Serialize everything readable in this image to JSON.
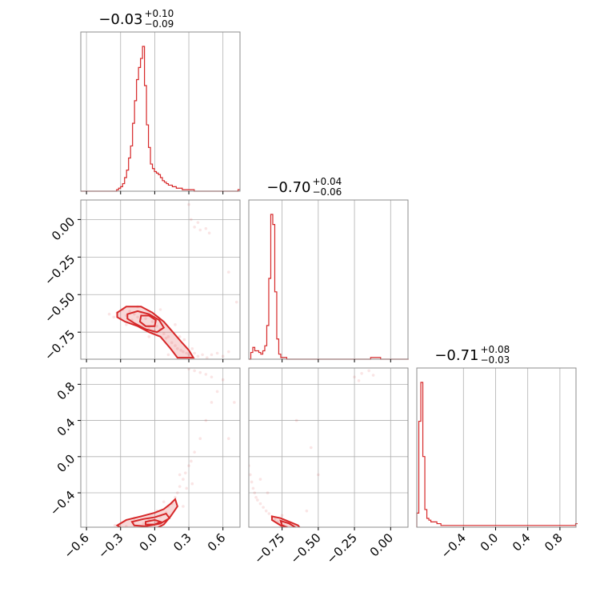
{
  "chart_data": {
    "type": "corner",
    "color": "#d62728",
    "parameters": [
      {
        "title_value": "−0.03",
        "title_plus": "+0.10",
        "title_minus": "−0.09",
        "range": [
          -0.65,
          0.75
        ],
        "ticks": [
          -0.6,
          -0.3,
          0.0,
          0.3,
          0.6
        ],
        "tick_labels": [
          "−0.6",
          "−0.3",
          "0.0",
          "0.3",
          "0.6"
        ],
        "hist": {
          "edges_start": -0.65,
          "bin_width": 0.0175,
          "counts": [
            0,
            0,
            0,
            0,
            0,
            0,
            0,
            0,
            0,
            0,
            0,
            0,
            0,
            0,
            0,
            0,
            0,
            0,
            1,
            2,
            3,
            5,
            9,
            14,
            22,
            30,
            45,
            60,
            74,
            82,
            88,
            96,
            70,
            44,
            29,
            18,
            15,
            13,
            12,
            11,
            9,
            7,
            6,
            5,
            4,
            4,
            3,
            3,
            2,
            2,
            2,
            1,
            1,
            1,
            1,
            1,
            1,
            0,
            0,
            0,
            0,
            0,
            0,
            0,
            0,
            0,
            0,
            0,
            0,
            0,
            0,
            0,
            0,
            0,
            0,
            0,
            0,
            0,
            0,
            1
          ]
        }
      },
      {
        "title_value": "−0.70",
        "title_plus": "+0.04",
        "title_minus": "−0.06",
        "range": [
          -0.98,
          0.12
        ],
        "ticks": [
          -0.75,
          -0.5,
          -0.25,
          0.0
        ],
        "tick_labels": [
          "−0.75",
          "−0.50",
          "−0.25",
          "0.00"
        ],
        "yticks": [
          0.0,
          -0.25,
          -0.5,
          -0.75
        ],
        "ytick_labels": [
          "0.00",
          "−0.25",
          "−0.50",
          "−0.75"
        ],
        "hist": {
          "edges_start": -0.98,
          "bin_width": 0.0138,
          "counts": [
            0,
            4,
            7,
            5,
            5,
            4,
            3,
            5,
            8,
            20,
            48,
            86,
            80,
            40,
            12,
            3,
            1,
            1,
            1,
            0,
            0,
            0,
            0,
            0,
            0,
            0,
            0,
            0,
            0,
            0,
            0,
            0,
            0,
            0,
            0,
            0,
            0,
            0,
            0,
            0,
            0,
            0,
            0,
            0,
            0,
            0,
            0,
            0,
            0,
            0,
            0,
            0,
            0,
            0,
            0,
            0,
            0,
            0,
            0,
            0,
            0,
            1,
            1,
            1,
            1,
            1,
            0,
            0,
            0,
            0,
            0,
            0,
            0,
            0,
            0,
            0,
            0,
            0,
            0,
            0
          ]
        }
      },
      {
        "title_value": "−0.71",
        "title_plus": "+0.08",
        "title_minus": "−0.03",
        "range": [
          -0.98,
          1.0
        ],
        "ticks": [
          -0.4,
          0.0,
          0.4,
          0.8
        ],
        "tick_labels": [
          "−0.4",
          "0.0",
          "0.4",
          "0.8"
        ],
        "yticks": [
          0.8,
          0.4,
          0.0,
          -0.4
        ],
        "ytick_labels": [
          "0.8",
          "0.4",
          "0.0",
          "−0.4"
        ],
        "hist": {
          "edges_start": -0.98,
          "bin_width": 0.025,
          "counts": [
            8,
            60,
            82,
            40,
            10,
            5,
            4,
            3,
            3,
            3,
            2,
            2,
            1,
            1,
            1,
            1,
            1,
            1,
            1,
            1,
            1,
            1,
            1,
            1,
            1,
            1,
            1,
            1,
            1,
            1,
            1,
            1,
            1,
            1,
            1,
            1,
            1,
            1,
            1,
            1,
            1,
            1,
            1,
            1,
            1,
            1,
            1,
            1,
            1,
            1,
            1,
            1,
            1,
            1,
            1,
            1,
            1,
            1,
            1,
            1,
            1,
            1,
            1,
            1,
            1,
            1,
            1,
            1,
            1,
            1,
            1,
            1,
            1,
            1,
            1,
            1,
            1,
            1,
            1,
            2
          ]
        }
      }
    ],
    "pairs": [
      {
        "name": "param2-vs-param1",
        "row": 1,
        "col": 0,
        "scatter": [
          [
            -0.4,
            -0.63
          ],
          [
            -0.36,
            -0.65
          ],
          [
            -0.33,
            -0.62
          ],
          [
            -0.3,
            -0.66
          ],
          [
            -0.28,
            -0.6
          ],
          [
            -0.25,
            -0.64
          ],
          [
            -0.22,
            -0.61
          ],
          [
            -0.2,
            -0.67
          ],
          [
            -0.18,
            -0.63
          ],
          [
            -0.15,
            -0.65
          ],
          [
            -0.12,
            -0.62
          ],
          [
            -0.1,
            -0.7
          ],
          [
            -0.08,
            -0.66
          ],
          [
            -0.05,
            -0.72
          ],
          [
            -0.02,
            -0.68
          ],
          [
            0.0,
            -0.74
          ],
          [
            0.02,
            -0.71
          ],
          [
            0.05,
            -0.73
          ],
          [
            0.08,
            -0.76
          ],
          [
            0.1,
            -0.79
          ],
          [
            0.12,
            -0.78
          ],
          [
            0.15,
            -0.82
          ],
          [
            0.18,
            -0.84
          ],
          [
            0.2,
            -0.86
          ],
          [
            0.23,
            -0.87
          ],
          [
            0.25,
            -0.88
          ],
          [
            0.28,
            -0.89
          ],
          [
            0.3,
            -0.9
          ],
          [
            0.33,
            -0.86
          ],
          [
            0.35,
            -0.89
          ],
          [
            0.38,
            -0.91
          ],
          [
            0.42,
            -0.9
          ],
          [
            0.46,
            -0.92
          ],
          [
            0.5,
            -0.9
          ],
          [
            0.55,
            -0.89
          ],
          [
            0.6,
            -0.91
          ],
          [
            0.65,
            -0.88
          ],
          [
            0.32,
            0.0
          ],
          [
            0.35,
            -0.05
          ],
          [
            0.38,
            -0.02
          ],
          [
            0.4,
            -0.07
          ],
          [
            0.45,
            -0.06
          ],
          [
            0.48,
            -0.09
          ],
          [
            0.3,
            0.1
          ],
          [
            0.65,
            -0.35
          ],
          [
            0.72,
            -0.55
          ],
          [
            -0.15,
            -0.58
          ],
          [
            -0.25,
            -0.7
          ],
          [
            0.05,
            -0.6
          ],
          [
            0.18,
            -0.7
          ],
          [
            0.22,
            -0.78
          ],
          [
            -0.05,
            -0.78
          ],
          [
            0.26,
            -0.8
          ],
          [
            0.12,
            -0.9
          ]
        ],
        "contours": [
          [
            [
              -0.33,
              -0.62
            ],
            [
              -0.25,
              -0.58
            ],
            [
              -0.12,
              -0.58
            ],
            [
              -0.02,
              -0.62
            ],
            [
              0.08,
              -0.68
            ],
            [
              0.16,
              -0.75
            ],
            [
              0.24,
              -0.82
            ],
            [
              0.3,
              -0.87
            ],
            [
              0.34,
              -0.92
            ],
            [
              0.2,
              -0.92
            ],
            [
              0.14,
              -0.86
            ],
            [
              0.05,
              -0.78
            ],
            [
              -0.05,
              -0.75
            ],
            [
              -0.15,
              -0.71
            ],
            [
              -0.26,
              -0.68
            ],
            [
              -0.33,
              -0.65
            ]
          ],
          [
            [
              -0.24,
              -0.63
            ],
            [
              -0.15,
              -0.61
            ],
            [
              -0.05,
              -0.63
            ],
            [
              0.04,
              -0.67
            ],
            [
              0.08,
              -0.72
            ],
            [
              0.02,
              -0.75
            ],
            [
              -0.08,
              -0.73
            ],
            [
              -0.18,
              -0.69
            ],
            [
              -0.24,
              -0.66
            ]
          ],
          [
            [
              -0.12,
              -0.64
            ],
            [
              -0.05,
              -0.64
            ],
            [
              0.01,
              -0.67
            ],
            [
              0.0,
              -0.71
            ],
            [
              -0.08,
              -0.71
            ],
            [
              -0.13,
              -0.68
            ]
          ]
        ],
        "ylim": [
          -0.93,
          0.13
        ]
      },
      {
        "name": "param3-vs-param1",
        "row": 2,
        "col": 0,
        "scatter": [
          [
            -0.35,
            -0.76
          ],
          [
            -0.3,
            -0.79
          ],
          [
            -0.25,
            -0.77
          ],
          [
            -0.2,
            -0.81
          ],
          [
            -0.15,
            -0.79
          ],
          [
            -0.1,
            -0.74
          ],
          [
            -0.05,
            -0.7
          ],
          [
            0.0,
            -0.72
          ],
          [
            0.05,
            -0.66
          ],
          [
            0.1,
            -0.62
          ],
          [
            0.12,
            -0.55
          ],
          [
            0.15,
            -0.52
          ],
          [
            0.18,
            -0.45
          ],
          [
            0.2,
            -0.4
          ],
          [
            0.22,
            -0.33
          ],
          [
            0.25,
            -0.25
          ],
          [
            0.27,
            -0.18
          ],
          [
            0.3,
            -0.1
          ],
          [
            0.32,
            -0.05
          ],
          [
            0.35,
            0.05
          ],
          [
            0.28,
            -0.35
          ],
          [
            0.22,
            -0.2
          ],
          [
            0.33,
            -0.3
          ],
          [
            0.4,
            0.2
          ],
          [
            0.45,
            0.4
          ],
          [
            0.5,
            0.6
          ],
          [
            0.55,
            0.72
          ],
          [
            0.6,
            0.85
          ],
          [
            0.35,
            0.95
          ],
          [
            0.4,
            0.93
          ],
          [
            0.45,
            0.91
          ],
          [
            0.5,
            0.88
          ],
          [
            0.3,
            0.97
          ],
          [
            0.7,
            0.6
          ],
          [
            0.65,
            0.2
          ],
          [
            0.08,
            -0.5
          ],
          [
            0.14,
            -0.65
          ],
          [
            -0.18,
            -0.68
          ],
          [
            0.02,
            -0.6
          ],
          [
            0.25,
            -0.55
          ]
        ],
        "contours": [
          [
            [
              -0.33,
              -0.76
            ],
            [
              -0.25,
              -0.7
            ],
            [
              -0.12,
              -0.66
            ],
            [
              0.0,
              -0.62
            ],
            [
              0.08,
              -0.58
            ],
            [
              0.14,
              -0.52
            ],
            [
              0.18,
              -0.47
            ],
            [
              0.2,
              -0.55
            ],
            [
              0.14,
              -0.66
            ],
            [
              0.08,
              -0.75
            ],
            [
              0.0,
              -0.8
            ],
            [
              -0.15,
              -0.81
            ],
            [
              -0.28,
              -0.8
            ]
          ],
          [
            [
              -0.2,
              -0.72
            ],
            [
              -0.1,
              -0.69
            ],
            [
              0.0,
              -0.67
            ],
            [
              0.1,
              -0.63
            ],
            [
              0.13,
              -0.68
            ],
            [
              0.05,
              -0.74
            ],
            [
              -0.08,
              -0.77
            ],
            [
              -0.18,
              -0.76
            ]
          ],
          [
            [
              -0.08,
              -0.72
            ],
            [
              0.0,
              -0.7
            ],
            [
              0.05,
              -0.72
            ],
            [
              0.0,
              -0.75
            ],
            [
              -0.08,
              -0.75
            ]
          ]
        ],
        "ylim": [
          -0.78,
          0.98
        ]
      },
      {
        "name": "param3-vs-param2",
        "row": 2,
        "col": 1,
        "scatter": [
          [
            -0.98,
            -0.1
          ],
          [
            -0.97,
            -0.2
          ],
          [
            -0.96,
            -0.28
          ],
          [
            -0.95,
            -0.35
          ],
          [
            -0.94,
            -0.4
          ],
          [
            -0.93,
            -0.45
          ],
          [
            -0.92,
            -0.48
          ],
          [
            -0.9,
            -0.52
          ],
          [
            -0.88,
            -0.56
          ],
          [
            -0.86,
            -0.6
          ],
          [
            -0.84,
            -0.63
          ],
          [
            -0.82,
            -0.66
          ],
          [
            -0.8,
            -0.69
          ],
          [
            -0.78,
            -0.72
          ],
          [
            -0.76,
            -0.74
          ],
          [
            -0.74,
            -0.76
          ],
          [
            -0.72,
            -0.78
          ],
          [
            -0.7,
            -0.8
          ],
          [
            -0.68,
            -0.82
          ],
          [
            -0.66,
            -0.79
          ],
          [
            -0.64,
            -0.82
          ],
          [
            -0.62,
            -0.8
          ],
          [
            -0.25,
            0.88
          ],
          [
            -0.2,
            0.92
          ],
          [
            -0.15,
            0.95
          ],
          [
            -0.12,
            0.9
          ],
          [
            -0.22,
            0.84
          ],
          [
            -0.65,
            0.4
          ],
          [
            -0.55,
            0.1
          ],
          [
            -0.5,
            -0.2
          ],
          [
            -0.85,
            -0.4
          ],
          [
            -0.75,
            -0.65
          ],
          [
            -0.58,
            -0.6
          ],
          [
            -0.9,
            -0.25
          ]
        ],
        "contours": [
          [
            [
              -0.82,
              -0.66
            ],
            [
              -0.76,
              -0.68
            ],
            [
              -0.7,
              -0.72
            ],
            [
              -0.64,
              -0.76
            ],
            [
              -0.62,
              -0.8
            ],
            [
              -0.66,
              -0.82
            ],
            [
              -0.72,
              -0.8
            ],
            [
              -0.78,
              -0.74
            ],
            [
              -0.82,
              -0.7
            ]
          ],
          [
            [
              -0.76,
              -0.71
            ],
            [
              -0.7,
              -0.74
            ],
            [
              -0.66,
              -0.78
            ],
            [
              -0.7,
              -0.79
            ],
            [
              -0.75,
              -0.76
            ]
          ]
        ],
        "ylim": [
          -0.78,
          0.98
        ]
      }
    ]
  }
}
